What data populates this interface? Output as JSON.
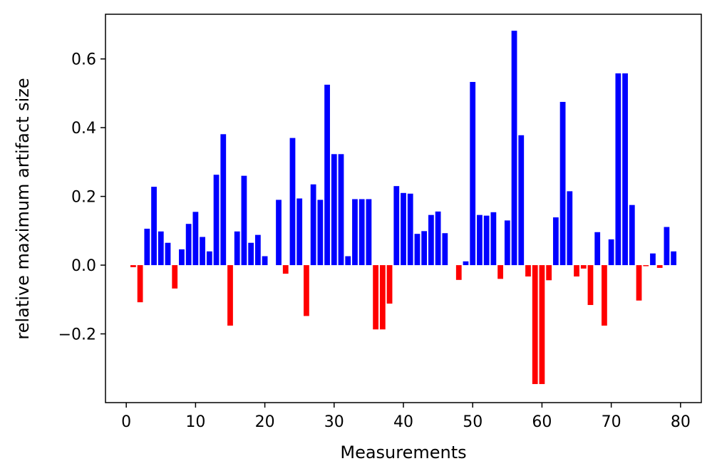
{
  "chart_data": {
    "type": "bar",
    "title": "",
    "xlabel": "Measurements",
    "ylabel": "relative maximum artifact size",
    "xlim": [
      -3.0,
      83.0
    ],
    "ylim": [
      -0.4,
      0.73
    ],
    "xticks": [
      0,
      10,
      20,
      30,
      40,
      50,
      60,
      70,
      80
    ],
    "xtick_labels": [
      "0",
      "10",
      "20",
      "30",
      "40",
      "50",
      "60",
      "70",
      "80"
    ],
    "yticks": [
      -0.2,
      0.0,
      0.2,
      0.4,
      0.6
    ],
    "ytick_labels": [
      "−0.2",
      "0.0",
      "0.2",
      "0.4",
      "0.6"
    ],
    "grid": false,
    "colors": {
      "positive": "#0000ff",
      "negative": "#ff0000"
    },
    "bar_width": 0.8,
    "x": [
      1,
      2,
      3,
      4,
      5,
      6,
      7,
      8,
      9,
      10,
      11,
      12,
      13,
      14,
      15,
      16,
      17,
      18,
      19,
      20,
      21,
      22,
      23,
      24,
      25,
      26,
      27,
      28,
      29,
      30,
      31,
      32,
      33,
      34,
      35,
      36,
      37,
      38,
      39,
      40,
      41,
      42,
      43,
      44,
      45,
      46,
      47,
      48,
      49,
      50,
      51,
      52,
      53,
      54,
      55,
      56,
      57,
      58,
      59,
      60,
      61,
      62,
      63,
      64,
      65,
      66,
      67,
      68,
      69,
      70,
      71,
      72,
      73,
      74,
      75,
      76,
      77,
      78,
      79
    ],
    "values": [
      -0.006,
      -0.108,
      0.106,
      0.228,
      0.098,
      0.065,
      -0.068,
      0.046,
      0.12,
      0.155,
      0.082,
      0.04,
      0.263,
      0.381,
      -0.176,
      0.098,
      0.26,
      0.065,
      0.088,
      0.026,
      0.0,
      0.19,
      -0.025,
      0.37,
      0.194,
      -0.148,
      0.235,
      0.19,
      0.525,
      0.323,
      0.323,
      0.026,
      0.192,
      0.192,
      0.192,
      -0.187,
      -0.187,
      -0.112,
      0.23,
      0.21,
      0.208,
      0.091,
      0.099,
      0.146,
      0.156,
      0.093,
      0.0,
      -0.043,
      0.011,
      0.533,
      0.146,
      0.144,
      0.154,
      -0.04,
      0.13,
      0.682,
      0.378,
      -0.033,
      -0.346,
      -0.346,
      -0.044,
      0.139,
      0.475,
      0.215,
      -0.033,
      -0.01,
      -0.116,
      0.096,
      -0.176,
      0.075,
      0.558,
      0.558,
      0.175,
      -0.103,
      -0.003,
      0.034,
      -0.008,
      0.111,
      0.04
    ]
  }
}
